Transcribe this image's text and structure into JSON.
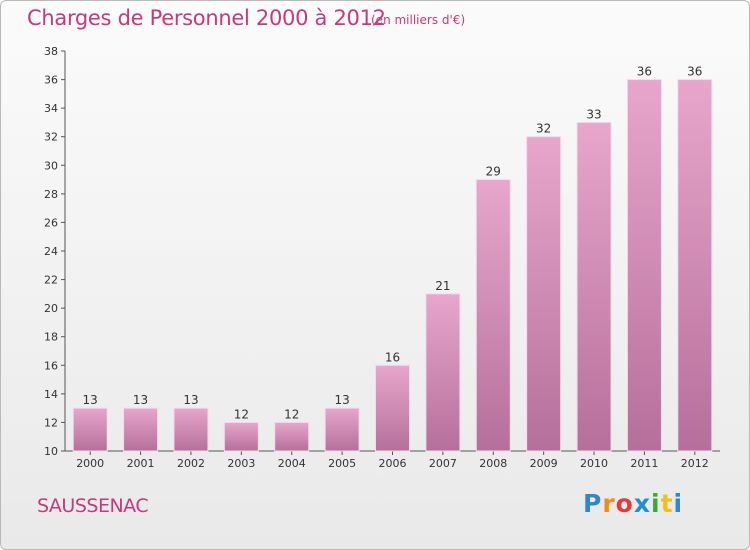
{
  "header": {
    "title": "Charges de Personnel 2000 à 2012",
    "unit": "(en milliers d'€)"
  },
  "footer": {
    "commune": "SAUSSENAC"
  },
  "logo": {
    "letters": [
      "P",
      "r",
      "o",
      "x",
      "i",
      "t",
      "i"
    ],
    "colors": [
      "#2f86c8",
      "#f08a1a",
      "#e23b3b",
      "#1e90d0",
      "#3aa83a",
      "#f0c020",
      "#2f86c8"
    ]
  },
  "colors": {
    "bar_top": "#e8a6cc",
    "bar_bottom": "#b4709a",
    "title": "#c43a7a"
  },
  "chart_data": {
    "type": "bar",
    "title": "Charges de Personnel 2000 à 2012",
    "categories": [
      "2000",
      "2001",
      "2002",
      "2003",
      "2004",
      "2005",
      "2006",
      "2007",
      "2008",
      "2009",
      "2010",
      "2011",
      "2012"
    ],
    "values": [
      13,
      13,
      13,
      12,
      12,
      13,
      16,
      21,
      29,
      32,
      33,
      36,
      36
    ],
    "ylim": [
      10,
      38
    ],
    "yticks": [
      10,
      12,
      14,
      16,
      18,
      20,
      22,
      24,
      26,
      28,
      30,
      32,
      34,
      36,
      38
    ],
    "grid": false,
    "xlabel": "",
    "ylabel": ""
  }
}
